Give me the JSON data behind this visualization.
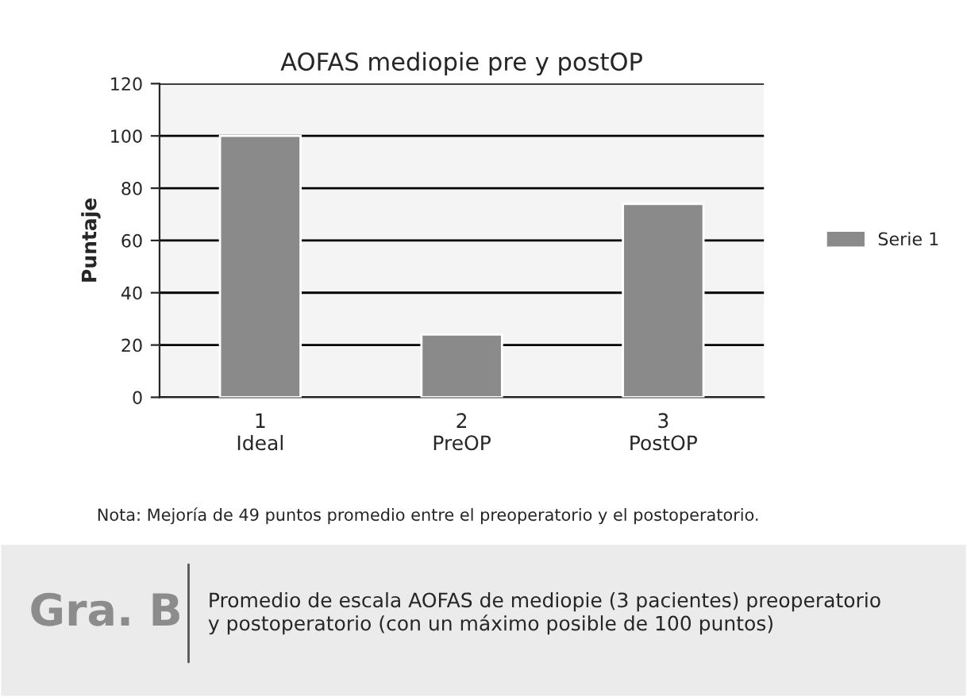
{
  "chart_data": {
    "type": "bar",
    "title": "AOFAS mediopie pre y postOP",
    "ylabel": "Puntaje",
    "categories": [
      "1\nIdeal",
      "2\nPreOP",
      "3\nPostOP"
    ],
    "series": [
      {
        "name": "Serie 1",
        "color": "#8a8a8a",
        "values": [
          100,
          24,
          74
        ]
      }
    ],
    "ylim": [
      0,
      120
    ],
    "yticks": [
      0,
      20,
      40,
      60,
      80,
      100,
      120
    ],
    "grid": "y",
    "legend": "right",
    "annotations": [
      "Nota: Mejoría de 49 puntos promedio entre el preoperatorio y el postoperatorio.",
      "Gra. B",
      "Promedio de escala AOFAS de mediopie (3 pacientes) preoperatorio\ny postoperatorio (con un máximo posible de 100 puntos)"
    ]
  }
}
